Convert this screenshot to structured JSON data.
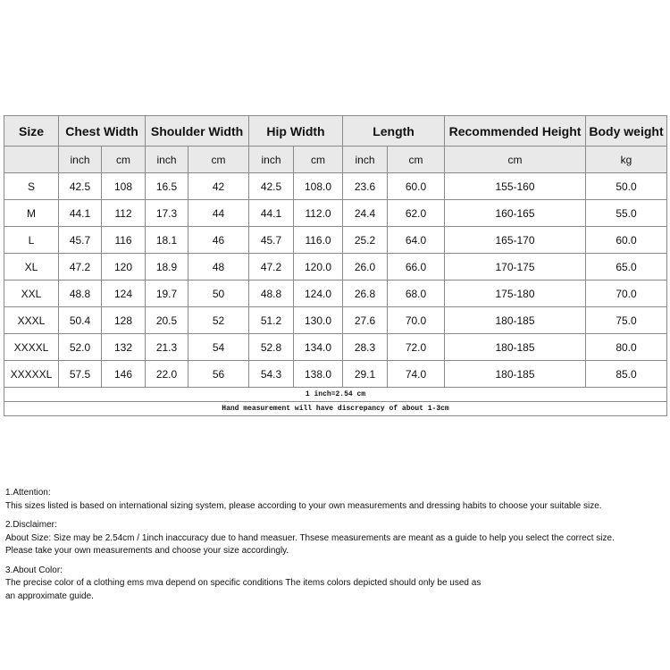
{
  "table": {
    "headers": [
      "Size",
      "Chest Width",
      "Shoulder Width",
      "Hip Width",
      "Length",
      "Recommended Height",
      "Body weight"
    ],
    "units": [
      "inch",
      "cm",
      "inch",
      "cm",
      "inch",
      "cm",
      "inch",
      "cm",
      "cm",
      "kg"
    ],
    "rows": [
      [
        "S",
        "42.5",
        "108",
        "16.5",
        "42",
        "42.5",
        "108.0",
        "23.6",
        "60.0",
        "155-160",
        "50.0"
      ],
      [
        "M",
        "44.1",
        "112",
        "17.3",
        "44",
        "44.1",
        "112.0",
        "24.4",
        "62.0",
        "160-165",
        "55.0"
      ],
      [
        "L",
        "45.7",
        "116",
        "18.1",
        "46",
        "45.7",
        "116.0",
        "25.2",
        "64.0",
        "165-170",
        "60.0"
      ],
      [
        "XL",
        "47.2",
        "120",
        "18.9",
        "48",
        "47.2",
        "120.0",
        "26.0",
        "66.0",
        "170-175",
        "65.0"
      ],
      [
        "XXL",
        "48.8",
        "124",
        "19.7",
        "50",
        "48.8",
        "124.0",
        "26.8",
        "68.0",
        "175-180",
        "70.0"
      ],
      [
        "XXXL",
        "50.4",
        "128",
        "20.5",
        "52",
        "51.2",
        "130.0",
        "27.6",
        "70.0",
        "180-185",
        "75.0"
      ],
      [
        "XXXXL",
        "52.0",
        "132",
        "21.3",
        "54",
        "52.8",
        "134.0",
        "28.3",
        "72.0",
        "180-185",
        "80.0"
      ],
      [
        "XXXXXL",
        "57.5",
        "146",
        "22.0",
        "56",
        "54.3",
        "138.0",
        "29.1",
        "74.0",
        "180-185",
        "85.0"
      ]
    ],
    "note_conversion": "1 inch=2.54 cm",
    "note_discrepancy": "Hand measurement will have discrepancy of about 1-3cm"
  },
  "notes": {
    "attention_title": "1.Attention:",
    "attention_text": "This sizes listed is based on international sizing system, please according to your own measurements and dressing habits to choose your suitable size.",
    "disclaimer_title": "2.Disclaimer:",
    "disclaimer_line1": "About Size: Size may be 2.54cm / 1inch inaccuracy due to hand measuer. Thsese measurements are meant as a guide to help you select the correct size.",
    "disclaimer_line2": "Please take your own measurements and choose your size accordingly.",
    "color_title": "3.About Color:",
    "color_line1": "The precise color of a clothing ems mva depend on specific conditions The items colors depicted should only be used as",
    "color_line2": "an approximate guide."
  }
}
